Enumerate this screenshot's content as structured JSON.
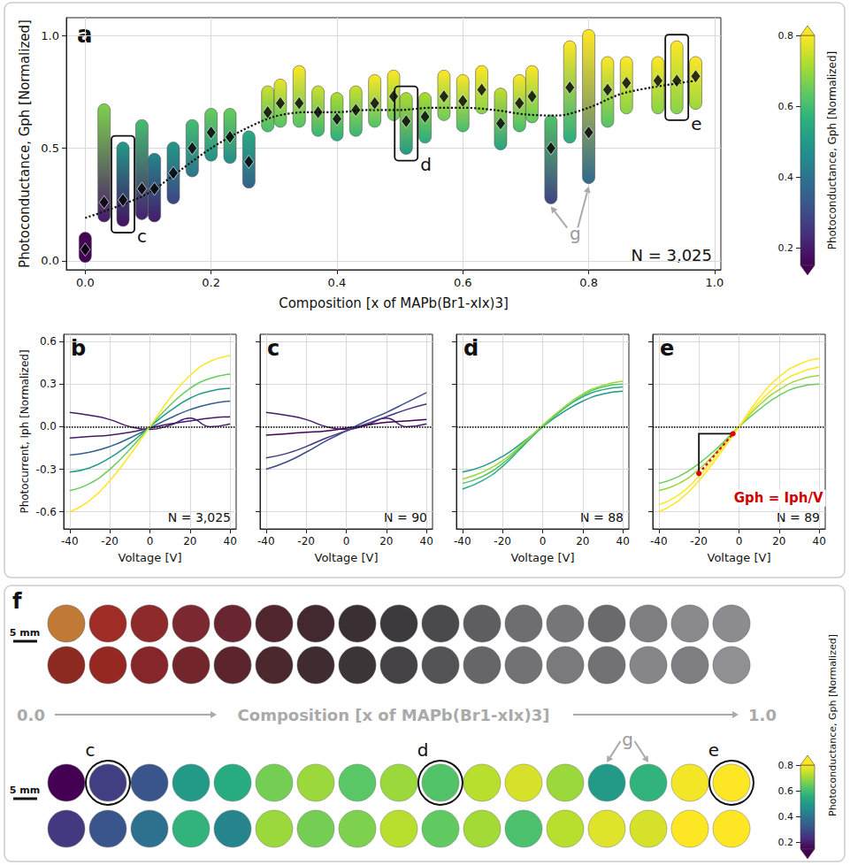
{
  "chart_data": [
    {
      "panel": "a",
      "type": "scatter",
      "x_label": "Composition [x of MAPb(Br1-xIx)3]",
      "y_label": "Photoconductance, Gph [Normalized]",
      "xlim": [
        -0.03,
        1.01
      ],
      "ylim": [
        -0.04,
        1.08
      ],
      "xticks": [
        {
          "value": 0,
          "label": "0.0"
        },
        {
          "value": 0.2,
          "label": "0.2"
        },
        {
          "value": 0.4,
          "label": "0.4"
        },
        {
          "value": 0.6,
          "label": "0.6"
        },
        {
          "value": 0.8,
          "label": "0.8"
        },
        {
          "value": 1,
          "label": "1.0"
        }
      ],
      "yticks": [
        {
          "value": 0,
          "label": "0.0"
        },
        {
          "value": 0.5,
          "label": "0.5"
        },
        {
          "value": 1,
          "label": "1.0"
        }
      ],
      "grid": true,
      "marker": "diamond",
      "line_style": "dotted",
      "columns": {
        "x": [
          0.0,
          0.03,
          0.06,
          0.09,
          0.11,
          0.14,
          0.17,
          0.2,
          0.23,
          0.26,
          0.29,
          0.31,
          0.34,
          0.37,
          0.4,
          0.43,
          0.46,
          0.49,
          0.51,
          0.54,
          0.57,
          0.6,
          0.63,
          0.66,
          0.69,
          0.71,
          0.74,
          0.77,
          0.8,
          0.83,
          0.86,
          0.91,
          0.94,
          0.97
        ],
        "min": [
          0.02,
          0.2,
          0.18,
          0.21,
          0.2,
          0.28,
          0.4,
          0.47,
          0.46,
          0.35,
          0.6,
          0.62,
          0.62,
          0.58,
          0.56,
          0.58,
          0.62,
          0.65,
          0.5,
          0.55,
          0.65,
          0.6,
          0.68,
          0.52,
          0.6,
          0.64,
          0.28,
          0.55,
          0.37,
          0.62,
          0.68,
          0.68,
          0.68,
          0.7
        ],
        "max": [
          0.1,
          0.67,
          0.5,
          0.6,
          0.45,
          0.5,
          0.6,
          0.65,
          0.65,
          0.55,
          0.75,
          0.78,
          0.84,
          0.75,
          0.72,
          0.75,
          0.8,
          0.82,
          0.72,
          0.72,
          0.82,
          0.8,
          0.84,
          0.74,
          0.8,
          0.84,
          0.62,
          0.95,
          1.0,
          0.88,
          0.88,
          0.88,
          0.95,
          0.88
        ],
        "mean": [
          0.05,
          0.26,
          0.27,
          0.32,
          0.32,
          0.39,
          0.5,
          0.57,
          0.55,
          0.44,
          0.66,
          0.7,
          0.7,
          0.66,
          0.63,
          0.67,
          0.7,
          0.73,
          0.62,
          0.64,
          0.73,
          0.71,
          0.76,
          0.61,
          0.7,
          0.73,
          0.5,
          0.77,
          0.57,
          0.76,
          0.79,
          0.8,
          0.8,
          0.82
        ]
      },
      "trend": {
        "x": [
          0.0,
          0.05,
          0.1,
          0.15,
          0.2,
          0.25,
          0.3,
          0.35,
          0.4,
          0.45,
          0.5,
          0.55,
          0.6,
          0.65,
          0.7,
          0.75,
          0.8,
          0.85,
          0.9,
          0.97
        ],
        "y": [
          0.19,
          0.24,
          0.3,
          0.4,
          0.5,
          0.58,
          0.64,
          0.66,
          0.66,
          0.67,
          0.67,
          0.68,
          0.68,
          0.67,
          0.65,
          0.645,
          0.68,
          0.74,
          0.77,
          0.8
        ]
      },
      "boxes": [
        {
          "label": "c",
          "x": 0.06
        },
        {
          "label": "d",
          "x": 0.51
        },
        {
          "label": "e",
          "x": 0.94
        }
      ],
      "arrows": {
        "label": "g",
        "x": [
          0.74,
          0.8
        ]
      },
      "annotation": "N = 3,025",
      "colorbar": {
        "title": "Photoconductance, Gph [Normalized]",
        "range": [
          0.15,
          0.8
        ],
        "ticks": [
          0.2,
          0.4,
          0.6,
          0.8
        ]
      }
    },
    {
      "panel": "b",
      "type": "line",
      "x_label": "Voltage [V]",
      "y_label": "Photocurrent, Iph [Normalized]",
      "xlim": [
        -43,
        43
      ],
      "ylim": [
        -0.72,
        0.65
      ],
      "xticks": [
        -40,
        -20,
        0,
        20,
        40
      ],
      "yticks": [
        {
          "value": -0.6,
          "label": "-0.6"
        },
        {
          "value": -0.3,
          "label": "-0.3"
        },
        {
          "value": 0,
          "label": "0.0"
        },
        {
          "value": 0.3,
          "label": "0.3"
        },
        {
          "value": 0.6,
          "label": "0.6"
        }
      ],
      "grid": true,
      "reference_y": 0,
      "annotation": "N = 3,025",
      "x": [
        -40,
        -30,
        -20,
        -10,
        0,
        10,
        20,
        30,
        40
      ],
      "series": [
        {
          "gph": 0.2,
          "values": [
            0.1,
            0.08,
            0.05,
            0.0,
            -0.02,
            0.01,
            0.06,
            0.0,
            0.02
          ]
        },
        {
          "gph": 0.2,
          "values": [
            -0.08,
            -0.07,
            -0.06,
            -0.04,
            -0.01,
            0.02,
            0.04,
            0.06,
            0.07
          ]
        },
        {
          "gph": 0.35,
          "values": [
            -0.2,
            -0.18,
            -0.14,
            -0.08,
            -0.01,
            0.06,
            0.12,
            0.16,
            0.18
          ]
        },
        {
          "gph": 0.5,
          "values": [
            -0.32,
            -0.29,
            -0.22,
            -0.12,
            0.0,
            0.11,
            0.2,
            0.25,
            0.27
          ]
        },
        {
          "gph": 0.65,
          "values": [
            -0.45,
            -0.4,
            -0.3,
            -0.16,
            0.0,
            0.15,
            0.27,
            0.34,
            0.37
          ]
        },
        {
          "gph": 0.8,
          "values": [
            -0.6,
            -0.52,
            -0.38,
            -0.2,
            0.0,
            0.2,
            0.36,
            0.46,
            0.5
          ]
        }
      ]
    },
    {
      "panel": "c",
      "type": "line",
      "x_label": "Voltage [V]",
      "tick_labels": "x",
      "xlim": [
        -43,
        43
      ],
      "ylim": [
        -0.72,
        0.65
      ],
      "xticks": [
        -40,
        -20,
        0,
        20,
        40
      ],
      "yticks": [
        {
          "value": -0.6,
          "label": "-0.6"
        },
        {
          "value": -0.3,
          "label": "-0.3"
        },
        {
          "value": 0,
          "label": "0.0"
        },
        {
          "value": 0.3,
          "label": "0.3"
        },
        {
          "value": 0.6,
          "label": "0.6"
        }
      ],
      "grid": true,
      "reference_y": 0,
      "annotation": "N = 90",
      "x": [
        -40,
        -30,
        -20,
        -10,
        0,
        10,
        20,
        30,
        40
      ],
      "series": [
        {
          "gph": 0.2,
          "values": [
            0.1,
            0.08,
            0.05,
            0.0,
            -0.02,
            0.01,
            0.06,
            0.0,
            0.02
          ]
        },
        {
          "gph": 0.15,
          "values": [
            -0.06,
            -0.05,
            -0.04,
            -0.03,
            -0.01,
            0.01,
            0.03,
            0.04,
            0.05
          ]
        },
        {
          "gph": 0.25,
          "values": [
            -0.22,
            -0.19,
            -0.14,
            -0.08,
            -0.03,
            0.02,
            0.07,
            0.12,
            0.16
          ]
        },
        {
          "gph": 0.3,
          "values": [
            -0.3,
            -0.25,
            -0.18,
            -0.1,
            -0.03,
            0.04,
            0.1,
            0.17,
            0.24
          ]
        }
      ]
    },
    {
      "panel": "d",
      "type": "line",
      "x_label": "Voltage [V]",
      "tick_labels": "x",
      "xlim": [
        -43,
        43
      ],
      "ylim": [
        -0.72,
        0.65
      ],
      "xticks": [
        -40,
        -20,
        0,
        20,
        40
      ],
      "yticks": [
        {
          "value": -0.6,
          "label": "-0.6"
        },
        {
          "value": -0.3,
          "label": "-0.3"
        },
        {
          "value": 0,
          "label": "0.0"
        },
        {
          "value": 0.3,
          "label": "0.3"
        },
        {
          "value": 0.6,
          "label": "0.6"
        }
      ],
      "grid": true,
      "reference_y": 0,
      "annotation": "N = 88",
      "x": [
        -40,
        -30,
        -20,
        -10,
        0,
        10,
        20,
        30,
        40
      ],
      "series": [
        {
          "gph": 0.5,
          "values": [
            -0.32,
            -0.28,
            -0.21,
            -0.11,
            0.0,
            0.1,
            0.18,
            0.23,
            0.25
          ]
        },
        {
          "gph": 0.55,
          "values": [
            -0.44,
            -0.38,
            -0.28,
            -0.14,
            0.0,
            0.12,
            0.21,
            0.26,
            0.28
          ]
        },
        {
          "gph": 0.62,
          "values": [
            -0.4,
            -0.35,
            -0.26,
            -0.13,
            0.0,
            0.12,
            0.22,
            0.28,
            0.3
          ]
        },
        {
          "gph": 0.7,
          "values": [
            -0.37,
            -0.32,
            -0.24,
            -0.12,
            0.01,
            0.13,
            0.23,
            0.29,
            0.32
          ]
        }
      ]
    },
    {
      "panel": "e",
      "type": "line",
      "x_label": "Voltage [V]",
      "tick_labels": "x",
      "xlim": [
        -43,
        43
      ],
      "ylim": [
        -0.72,
        0.65
      ],
      "xticks": [
        -40,
        -20,
        0,
        20,
        40
      ],
      "yticks": [
        {
          "value": -0.6,
          "label": "-0.6"
        },
        {
          "value": -0.3,
          "label": "-0.3"
        },
        {
          "value": 0,
          "label": "0.0"
        },
        {
          "value": 0.3,
          "label": "0.3"
        },
        {
          "value": 0.6,
          "label": "0.6"
        }
      ],
      "grid": true,
      "reference_y": 0,
      "annotation": "N = 89",
      "x": [
        -40,
        -30,
        -20,
        -10,
        0,
        10,
        20,
        30,
        40
      ],
      "series": [
        {
          "gph": 0.65,
          "values": [
            -0.4,
            -0.35,
            -0.26,
            -0.14,
            0.0,
            0.12,
            0.22,
            0.28,
            0.3
          ]
        },
        {
          "gph": 0.7,
          "values": [
            -0.45,
            -0.4,
            -0.3,
            -0.16,
            0.0,
            0.15,
            0.26,
            0.33,
            0.36
          ]
        },
        {
          "gph": 0.8,
          "values": [
            -0.55,
            -0.48,
            -0.35,
            -0.18,
            0.0,
            0.17,
            0.3,
            0.38,
            0.42
          ]
        },
        {
          "gph": 0.85,
          "values": [
            -0.6,
            -0.52,
            -0.38,
            -0.2,
            0.0,
            0.2,
            0.35,
            0.44,
            0.48
          ]
        }
      ],
      "formula": {
        "text": "Gph = Iph/V",
        "from": [
          -20,
          -0.33
        ],
        "to": [
          -3,
          -0.05
        ]
      }
    },
    {
      "panel": "f",
      "type": "disc_map",
      "axis_label": "Composition [x of MAPb(Br1-xIx)3]",
      "range_labels": [
        "0.0",
        "1.0"
      ],
      "scale_label": "5 mm",
      "photos": {
        "colors": [
          "#c07a35",
          "#8c2a22",
          "#a02c26",
          "#962822",
          "#8f2a2a",
          "#86262a",
          "#7c2830",
          "#72262c",
          "#6a2630",
          "#5c242c",
          "#52262e",
          "#4a282e",
          "#43292f",
          "#3e2c30",
          "#3a3034",
          "#3c3538",
          "#3d3a3e",
          "#444246",
          "#4a4a4e",
          "#545458",
          "#5e5e62",
          "#66666a",
          "#6e6e72",
          "#727276",
          "#76767a",
          "#7a7a7e",
          "#6a6a6e",
          "#727276",
          "#7e7e82",
          "#86868a",
          "#8a8a8e",
          "#7e7e82",
          "#8c8c90",
          "#909094"
        ]
      },
      "gph": [
        0.05,
        0.26,
        0.27,
        0.32,
        0.32,
        0.39,
        0.5,
        0.57,
        0.55,
        0.44,
        0.66,
        0.7,
        0.7,
        0.66,
        0.63,
        0.67,
        0.7,
        0.73,
        0.62,
        0.64,
        0.73,
        0.71,
        0.76,
        0.61,
        0.7,
        0.73,
        0.5,
        0.77,
        0.57,
        0.76,
        0.79,
        0.8,
        0.8,
        0.82
      ],
      "highlights": [
        {
          "label": "c",
          "index": 2
        },
        {
          "label": "d",
          "index": 18
        },
        {
          "label": "e",
          "index": 32
        }
      ],
      "arrows": {
        "label": "g",
        "index": [
          26,
          28
        ]
      },
      "colorbar": {
        "title": "Photoconductance, Gph [Normalized]",
        "range": [
          0.15,
          0.8
        ],
        "ticks": [
          0.2,
          0.4,
          0.6,
          0.8
        ]
      }
    }
  ]
}
